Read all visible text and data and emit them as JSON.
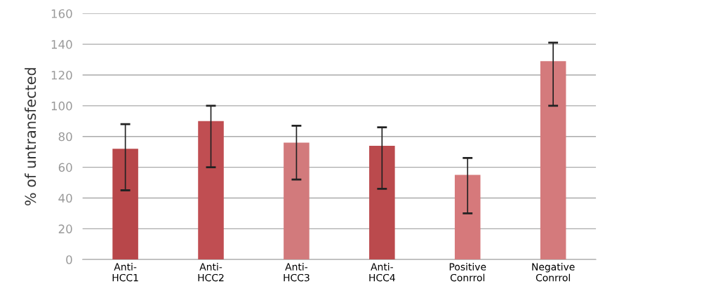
{
  "chart_data": {
    "type": "bar",
    "ylabel": "% of untransfected",
    "categories": [
      "Anti-\nHCC1",
      "Anti-\nHCC2",
      "Anti-\nHCC3",
      "Anti-\nHCC4",
      "Positive\nConrrol",
      "Negative\nConrrol"
    ],
    "values": [
      72,
      90,
      76,
      74,
      55,
      129
    ],
    "errors": [
      [
        45,
        88
      ],
      [
        60,
        100
      ],
      [
        52,
        87
      ],
      [
        46,
        86
      ],
      [
        30,
        66
      ],
      [
        100,
        141
      ]
    ],
    "colors": [
      "#b8474a",
      "#c04e52",
      "#d27a7c",
      "#bb4a4d",
      "#d6797b",
      "#d47a7c"
    ],
    "ylim": [
      0,
      160
    ],
    "yticks": [
      0,
      20,
      40,
      60,
      80,
      100,
      120,
      140,
      160
    ],
    "grid": "y"
  }
}
